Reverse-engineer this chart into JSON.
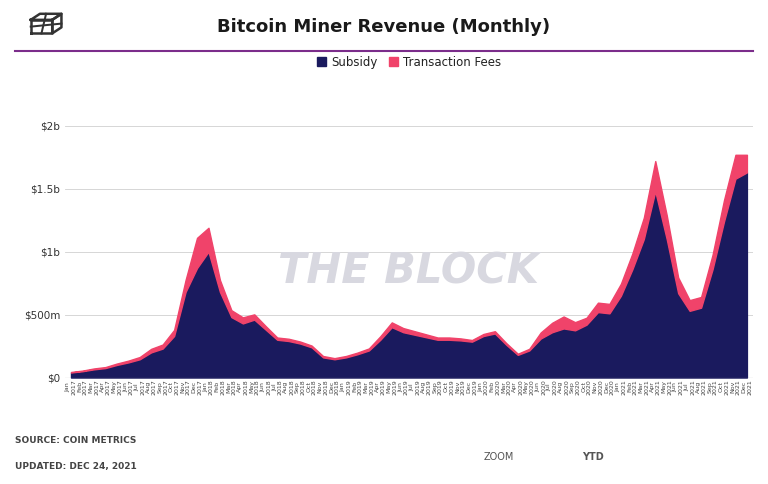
{
  "title": "Bitcoin Miner Revenue (Monthly)",
  "subsidy_color": "#1a1a5e",
  "fees_color": "#f0436a",
  "background_color": "#ffffff",
  "watermark_color": "#d8d8e0",
  "watermark_text": "THE BLOCK",
  "source_text": "SOURCE: COIN METRICS",
  "updated_text": "UPDATED: DEC 24, 2021",
  "legend_subsidy": "Subsidy",
  "legend_fees": "Transaction Fees",
  "ylim": [
    0,
    2000000000
  ],
  "yticks": [
    0,
    500000000,
    1000000000,
    1500000000,
    2000000000
  ],
  "ytick_labels": [
    "$0",
    "$500m",
    "$1b",
    "$1.5b",
    "$2b"
  ],
  "header_line_color": "#7b2d8b",
  "months_short": [
    "Jan",
    "Feb",
    "Mar",
    "Apr",
    "May",
    "Jun",
    "Jul",
    "Aug",
    "Sep",
    "Oct",
    "Nov",
    "Dec",
    "Jan",
    "Feb",
    "Mar",
    "Apr",
    "May",
    "Jun",
    "Jul",
    "Aug",
    "Sep",
    "Oct",
    "Nov",
    "Dec",
    "Jan",
    "Feb",
    "Mar",
    "Apr",
    "May",
    "Jun",
    "Jul",
    "Aug",
    "Sep",
    "Oct",
    "Nov",
    "Dec",
    "Jan",
    "Feb",
    "Mar",
    "Apr",
    "May",
    "Jun",
    "Jul",
    "Aug",
    "Sep",
    "Oct",
    "Nov",
    "Dec",
    "Jan",
    "Feb",
    "Mar",
    "Apr",
    "May",
    "Jun",
    "Jul",
    "Aug",
    "Sep",
    "Oct",
    "Nov",
    "Dec"
  ],
  "years": [
    "2017",
    "2017",
    "2017",
    "2017",
    "2017",
    "2017",
    "2017",
    "2017",
    "2017",
    "2017",
    "2017",
    "2017",
    "2018",
    "2018",
    "2018",
    "2018",
    "2018",
    "2018",
    "2018",
    "2018",
    "2018",
    "2018",
    "2018",
    "2018",
    "2019",
    "2019",
    "2019",
    "2019",
    "2019",
    "2019",
    "2019",
    "2019",
    "2019",
    "2019",
    "2019",
    "2019",
    "2020",
    "2020",
    "2020",
    "2020",
    "2020",
    "2020",
    "2020",
    "2020",
    "2020",
    "2020",
    "2020",
    "2020",
    "2021",
    "2021",
    "2021",
    "2021",
    "2021",
    "2021",
    "2021",
    "2021",
    "2021",
    "2021",
    "2021",
    "2021"
  ],
  "subsidy": [
    40000000,
    50000000,
    65000000,
    75000000,
    100000000,
    120000000,
    145000000,
    200000000,
    230000000,
    330000000,
    680000000,
    870000000,
    1000000000,
    680000000,
    480000000,
    430000000,
    460000000,
    380000000,
    300000000,
    290000000,
    270000000,
    240000000,
    160000000,
    145000000,
    160000000,
    185000000,
    215000000,
    300000000,
    400000000,
    360000000,
    340000000,
    320000000,
    300000000,
    300000000,
    295000000,
    285000000,
    330000000,
    350000000,
    260000000,
    180000000,
    215000000,
    310000000,
    360000000,
    390000000,
    375000000,
    420000000,
    520000000,
    510000000,
    650000000,
    860000000,
    1100000000,
    1480000000,
    1100000000,
    670000000,
    530000000,
    555000000,
    860000000,
    1240000000,
    1580000000,
    1630000000
  ],
  "fees": [
    4000000,
    5000000,
    7000000,
    8000000,
    11000000,
    14000000,
    18000000,
    28000000,
    32000000,
    48000000,
    95000000,
    240000000,
    190000000,
    95000000,
    55000000,
    48000000,
    42000000,
    28000000,
    18000000,
    18000000,
    16000000,
    14000000,
    11000000,
    9000000,
    11000000,
    13000000,
    16000000,
    28000000,
    38000000,
    33000000,
    28000000,
    23000000,
    18000000,
    18000000,
    16000000,
    13000000,
    16000000,
    18000000,
    13000000,
    9000000,
    13000000,
    48000000,
    75000000,
    95000000,
    65000000,
    55000000,
    75000000,
    75000000,
    95000000,
    125000000,
    170000000,
    240000000,
    190000000,
    125000000,
    85000000,
    85000000,
    115000000,
    170000000,
    190000000,
    140000000
  ]
}
